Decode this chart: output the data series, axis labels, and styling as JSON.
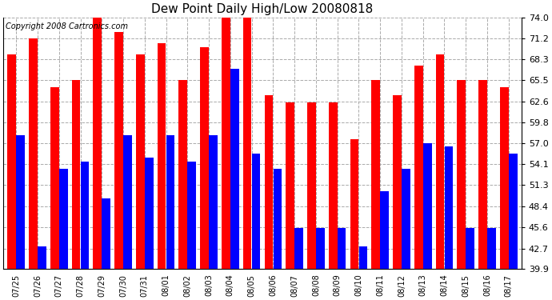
{
  "title": "Dew Point Daily High/Low 20080818",
  "copyright": "Copyright 2008 Cartronics.com",
  "dates": [
    "07/25",
    "07/26",
    "07/27",
    "07/28",
    "07/29",
    "07/30",
    "07/31",
    "08/01",
    "08/02",
    "08/03",
    "08/04",
    "08/05",
    "08/06",
    "08/07",
    "08/08",
    "08/09",
    "08/10",
    "08/11",
    "08/12",
    "08/13",
    "08/14",
    "08/15",
    "08/16",
    "08/17"
  ],
  "highs": [
    69.0,
    71.2,
    64.5,
    65.5,
    74.0,
    72.0,
    69.0,
    70.5,
    65.5,
    70.0,
    74.0,
    74.0,
    63.5,
    62.5,
    62.5,
    62.5,
    57.5,
    65.5,
    63.5,
    67.5,
    69.0,
    65.5,
    65.5,
    64.5
  ],
  "lows": [
    58.0,
    43.0,
    53.5,
    54.5,
    49.5,
    58.0,
    55.0,
    58.0,
    54.5,
    58.0,
    67.0,
    55.5,
    53.5,
    45.5,
    45.5,
    45.5,
    43.0,
    50.5,
    53.5,
    57.0,
    56.5,
    45.5,
    45.5,
    55.5
  ],
  "y_ticks": [
    39.9,
    42.7,
    45.6,
    48.4,
    51.3,
    54.1,
    57.0,
    59.8,
    62.6,
    65.5,
    68.3,
    71.2,
    74.0
  ],
  "ylim_min": 39.9,
  "ylim_max": 74.0,
  "bar_color_high": "#FF0000",
  "bar_color_low": "#0000FF",
  "bg_color": "#FFFFFF",
  "grid_color": "#AAAAAA",
  "title_fontsize": 11,
  "copyright_fontsize": 7
}
